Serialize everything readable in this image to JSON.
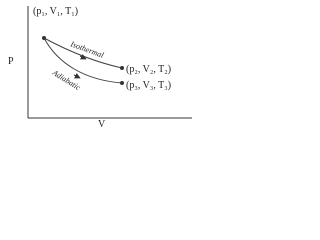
{
  "diagram": {
    "axes": {
      "y_label": "P",
      "x_label": "V"
    },
    "points": {
      "start": "(p₁, V₁, T₁)",
      "isothermal_end": "(p₂, V₂, T₂)",
      "adiabatic_end": "(p₃, V₃, T₃)"
    },
    "curves": {
      "isothermal": "Isothermal",
      "adiabatic": "Adiabatic"
    }
  }
}
